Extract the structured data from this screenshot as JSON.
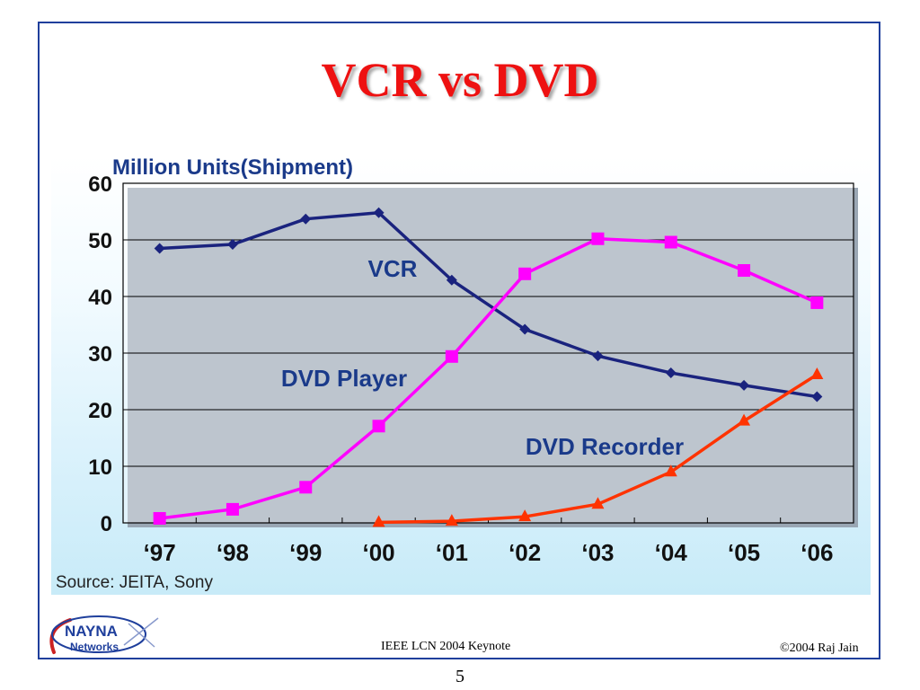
{
  "slide": {
    "title": "VCR vs DVD",
    "source": "Source: JEITA, Sony",
    "footer_center": "IEEE LCN 2004 Keynote",
    "footer_right": "©2004 Raj Jain",
    "page_number": "5",
    "logo": {
      "line1": "NAYNA",
      "line2": "Networks"
    }
  },
  "colors": {
    "frame": "#1f3f9c",
    "title": "#ee1111",
    "vcr": "#1a237e",
    "dvd_player": "#ff00ff",
    "dvd_recorder": "#ff3300",
    "axis_text": "#111111",
    "label_text": "#1a3a8a"
  },
  "chart_data": {
    "type": "line",
    "ylabel": "Million Units(Shipment)",
    "ylim": [
      0,
      60
    ],
    "yticks": [
      "0",
      "10",
      "20",
      "30",
      "40",
      "50",
      "60"
    ],
    "categories": [
      "‘97",
      "‘98",
      "‘99",
      "‘00",
      "‘01",
      "‘02",
      "‘03",
      "‘04",
      "‘05",
      "‘06"
    ],
    "grid": "horizontal",
    "series": [
      {
        "name": "VCR",
        "marker": "diamond",
        "values": [
          48.5,
          49.2,
          53.7,
          54.8,
          42.9,
          34.2,
          29.5,
          26.5,
          24.3,
          22.3
        ]
      },
      {
        "name": "DVD Player",
        "marker": "square",
        "values": [
          0.8,
          2.4,
          6.3,
          17.1,
          29.4,
          44.0,
          50.2,
          49.6,
          44.6,
          38.9
        ]
      },
      {
        "name": "DVD Recorder",
        "marker": "triangle",
        "values": [
          null,
          null,
          null,
          0.1,
          0.3,
          1.1,
          3.3,
          9.0,
          18.0,
          26.2
        ]
      }
    ]
  }
}
